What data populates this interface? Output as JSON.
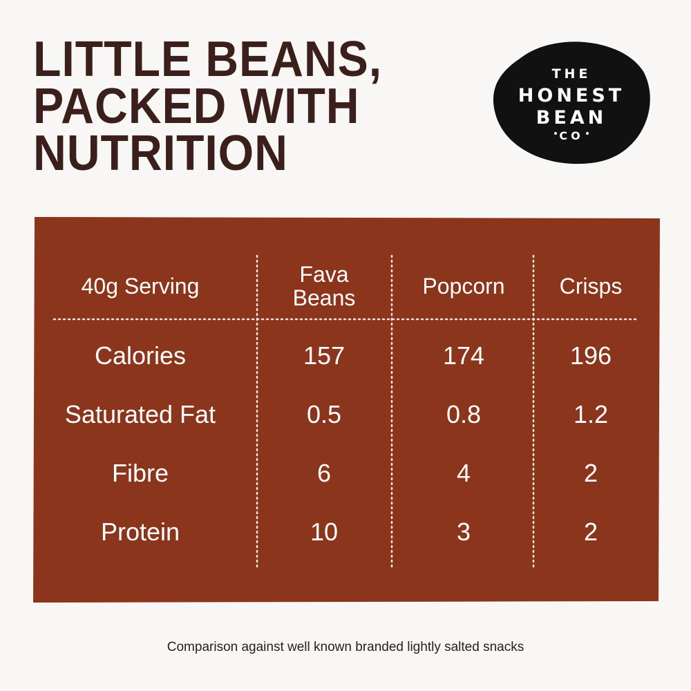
{
  "header": {
    "title_lines": [
      "LITTLE BEANS,",
      "PACKED WITH",
      "NUTRITION"
    ],
    "logo_lines": [
      "THE",
      "HONEST",
      "BEAN",
      "CO"
    ]
  },
  "table": {
    "columns": [
      "40g Serving",
      "Fava Beans",
      "Popcorn",
      "Crisps"
    ],
    "rows": [
      [
        "Calories",
        "157",
        "174",
        "196"
      ],
      [
        "Saturated Fat",
        "0.5",
        "0.8",
        "1.2"
      ],
      [
        "Fibre",
        "6",
        "4",
        "2"
      ],
      [
        "Protein",
        "10",
        "3",
        "2"
      ]
    ]
  },
  "footnote": "Comparison against well known branded lightly salted snacks"
}
